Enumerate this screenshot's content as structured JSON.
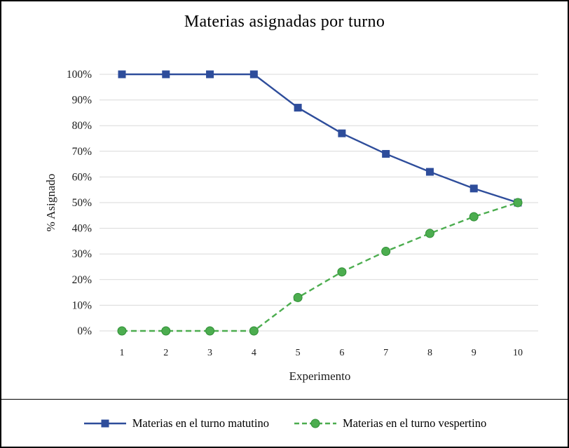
{
  "chart_data": {
    "type": "line",
    "title": "Materias asignadas por turno",
    "xlabel": "Experimento",
    "ylabel": "% Asignado",
    "categories": [
      "1",
      "2",
      "3",
      "4",
      "5",
      "6",
      "7",
      "8",
      "9",
      "10"
    ],
    "series": [
      {
        "name": "Materias en el turno matutino",
        "values": [
          100,
          100,
          100,
          100,
          87,
          77,
          69,
          62,
          55.5,
          50
        ],
        "color": "#2e4d9b",
        "line": "solid",
        "marker": "square"
      },
      {
        "name": "Materias en el turno vespertino",
        "values": [
          0,
          0,
          0,
          0,
          13,
          23,
          31,
          38,
          44.5,
          50
        ],
        "color": "#4cad4f",
        "line": "dashed",
        "marker": "circle"
      }
    ],
    "ylim": [
      0,
      100
    ],
    "ytick_step": 10,
    "ytick_labels": [
      "0%",
      "10%",
      "20%",
      "30%",
      "40%",
      "50%",
      "60%",
      "70%",
      "80%",
      "90%",
      "100%"
    ],
    "grid": "horizontal",
    "gridline_color": "#d9d9d9",
    "legend_position": "bottom"
  }
}
